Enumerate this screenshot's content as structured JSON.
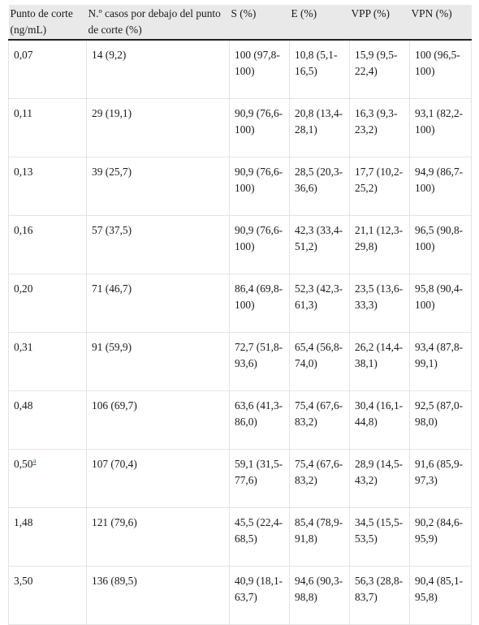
{
  "headers": [
    "Punto de corte (ng/mL)",
    "N.º casos por debajo del punto de corte (%)",
    "S (%)",
    "E (%)",
    "VPP (%)",
    "VPN (%)"
  ],
  "rows": [
    {
      "cut": "0,07",
      "fn": "",
      "n": "14 (9,2)",
      "s": "100 (97,8-100)",
      "e": "10,8 (5,1-16,5)",
      "vpp": "15,9 (9,5-22,4)",
      "vpn": "100 (96,5-100)"
    },
    {
      "cut": "0,11",
      "fn": "",
      "n": "29 (19,1)",
      "s": "90,9 (76,6-100)",
      "e": "20,8 (13,4-28,1)",
      "vpp": "16,3 (9,3-23,2)",
      "vpn": "93,1 (82,2-100)"
    },
    {
      "cut": "0,13",
      "fn": "",
      "n": "39 (25,7)",
      "s": "90,9 (76,6-100)",
      "e": "28,5 (20,3-36,6)",
      "vpp": "17,7 (10,2-25,2)",
      "vpn": "94,9 (86,7-100)"
    },
    {
      "cut": "0,16",
      "fn": "",
      "n": "57 (37,5)",
      "s": "90,9 (76,6-100)",
      "e": "42,3 (33,4-51,2)",
      "vpp": "21,1 (12,3-29,8)",
      "vpn": "96,5 (90,8-100)"
    },
    {
      "cut": "0,20",
      "fn": "",
      "n": "71 (46,7)",
      "s": "86,4 (69,8-100)",
      "e": "52,3 (42,3-61,3)",
      "vpp": "23,5 (13,6-33,3)",
      "vpn": "95,8 (90,4-100)"
    },
    {
      "cut": "0,31",
      "fn": "",
      "n": "91 (59,9)",
      "s": "72,7 (51,8-93,6)",
      "e": "65,4 (56,8-74,0)",
      "vpp": "26,2 (14,4-38,1)",
      "vpn": "93,4 (87,8-99,1)"
    },
    {
      "cut": "0,48",
      "fn": "",
      "n": "106 (69,7)",
      "s": "63,6 (41,3-86,0)",
      "e": "75,4 (67,6-83,2)",
      "vpp": "30,4 (16,1-44,8)",
      "vpn": "92,5 (87,0-98,0)"
    },
    {
      "cut": "0,50",
      "fn": "a",
      "n": "107 (70,4)",
      "s": "59,1 (31,5-77,6)",
      "e": "75,4 (67,6-83,2)",
      "vpp": "28,9 (14,5-43,2)",
      "vpn": "91,6 (85,9-97,3)"
    },
    {
      "cut": "1,48",
      "fn": "",
      "n": "121 (79,6)",
      "s": "45,5 (22,4-68,5)",
      "e": "85,4 (78,9-91,8)",
      "vpp": "34,5 (15,5-53,5)",
      "vpn": "90,2 (84,6-95,9)"
    },
    {
      "cut": "3,50",
      "fn": "",
      "n": "136 (89,5)",
      "s": "40,9 (18,1-63,7)",
      "e": "94,6 (90,3-98,8)",
      "vpp": "56,3 (28,8-83,7)",
      "vpn": "90,4 (85,1-95,8)"
    }
  ]
}
